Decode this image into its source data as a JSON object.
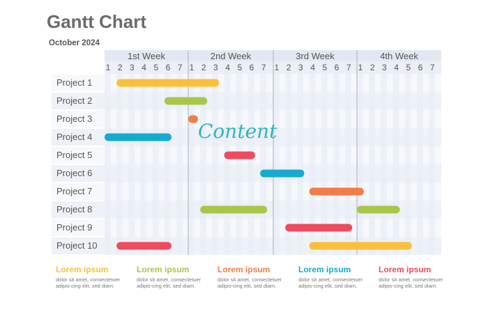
{
  "header": {
    "title": "Gantt Chart",
    "subtitle": "October 2024"
  },
  "chart_data": {
    "type": "gantt",
    "weeks": [
      {
        "label": "1st Week",
        "days": [
          "1",
          "2",
          "3",
          "4",
          "5",
          "6",
          "7"
        ]
      },
      {
        "label": "2nd Week",
        "days": [
          "1",
          "2",
          "3",
          "4",
          "5",
          "6",
          "7"
        ]
      },
      {
        "label": "3rd Week",
        "days": [
          "1",
          "2",
          "3",
          "4",
          "5",
          "6",
          "7"
        ]
      },
      {
        "label": "4th Week",
        "days": [
          "1",
          "2",
          "3",
          "4",
          "5",
          "6",
          "7"
        ]
      }
    ],
    "tasks": [
      {
        "name": "Project 1",
        "start": 2,
        "end": 10,
        "color": "#fbbf3a"
      },
      {
        "name": "Project 2",
        "start": 6,
        "end": 9,
        "color": "#a8c64a"
      },
      {
        "name": "Project 3",
        "start": 8,
        "end": 8,
        "color": "#f47c48"
      },
      {
        "name": "Project 4",
        "start": 1,
        "end": 6,
        "color": "#13abd0"
      },
      {
        "name": "Project 5",
        "start": 11,
        "end": 13,
        "color": "#ee4b5f"
      },
      {
        "name": "Project 6",
        "start": 14,
        "end": 17,
        "color": "#13abd0"
      },
      {
        "name": "Project 7",
        "start": 18,
        "end": 22,
        "color": "#f47c48"
      },
      {
        "name": "Project 8",
        "start": 9,
        "end": 14,
        "color": "#a8c64a"
      },
      {
        "name": "Project 8",
        "start": 22,
        "end": 25,
        "color": "#a8c64a"
      },
      {
        "name": "Project 9",
        "start": 16,
        "end": 21,
        "color": "#ee4b5f"
      },
      {
        "name": "Project 10",
        "start": 2,
        "end": 6,
        "color": "#ee4b5f"
      },
      {
        "name": "Project 10",
        "start": 18,
        "end": 26,
        "color": "#fbbf3a"
      }
    ],
    "annotation": "Content"
  },
  "legend": [
    {
      "heading": "Lorem ipsum",
      "text": "dolor sit amet, consectetuer adipis-cing elit, sed diam.",
      "color": "#fbbf3a"
    },
    {
      "heading": "Lorem ipsum",
      "text": "dolor sit amet, consectetuer adipis-cing elit, sed diam.",
      "color": "#a8c64a"
    },
    {
      "heading": "Lorem ipsum",
      "text": "dolor sit amet, consectetuer adipis-cing elit, sed diam.",
      "color": "#f47c48"
    },
    {
      "heading": "Lorem ipsum",
      "text": "dolor sit amet, consectetuer adipis-cing elit, sed diam.",
      "color": "#13abd0"
    },
    {
      "heading": "Lorem ipsum",
      "text": "dolor sit amet, consectetuer adipis-cing elit, sed diam.",
      "color": "#ee4b5f"
    }
  ]
}
